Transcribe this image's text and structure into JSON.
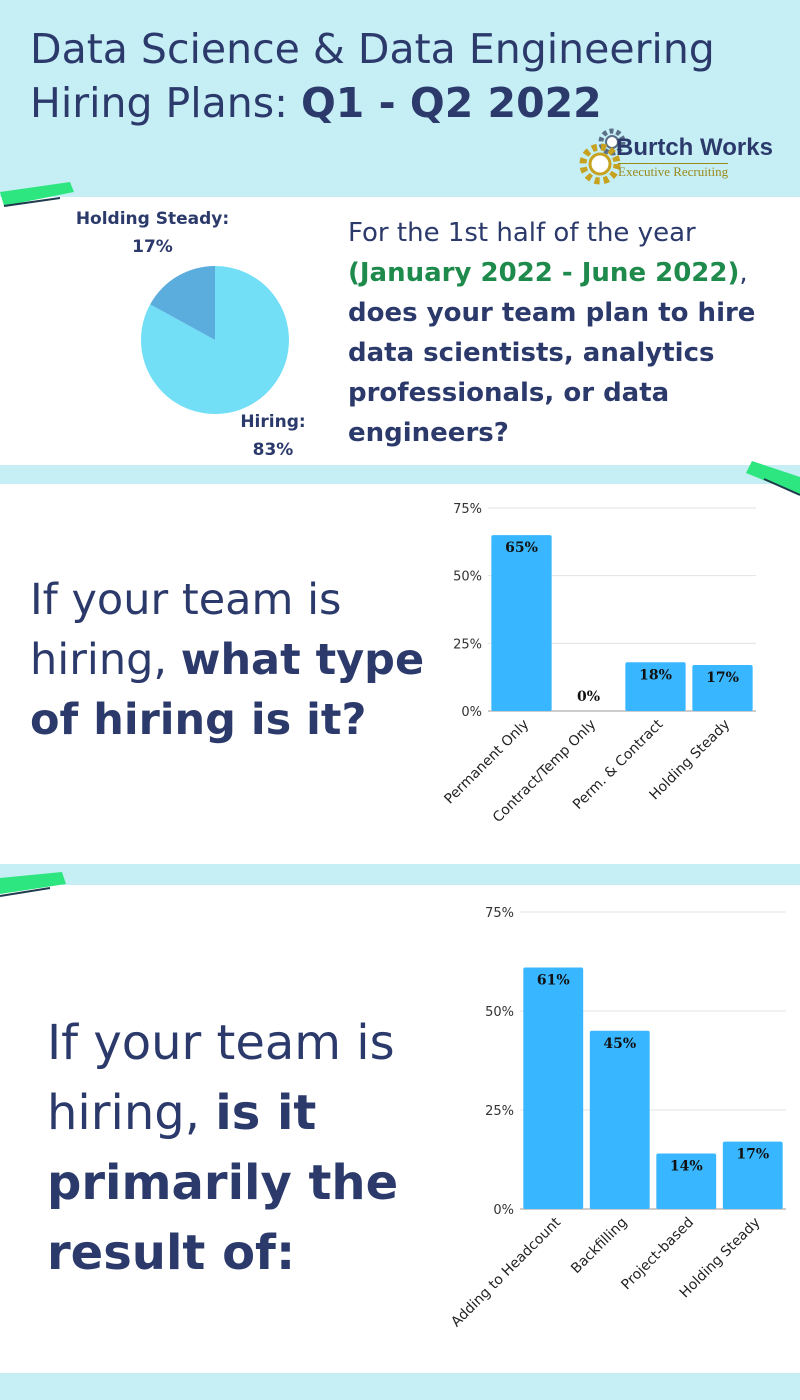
{
  "header": {
    "title_part1": "Data Science & Data Engineering",
    "title_part2": "Hiring Plans: ",
    "title_bold": "Q1 - Q2 2022"
  },
  "logo": {
    "name": "Burtch Works",
    "tagline": "Executive Recruiting"
  },
  "colors": {
    "title": "#2b3a6b",
    "bar": "#38b6ff",
    "pie_hiring": "#72dff6",
    "pie_holding": "#5badde",
    "accent_green": "#2ee67f",
    "background": "#c6eef5"
  },
  "section1": {
    "question_part1": "For the 1st half of the year",
    "question_green": "(January 2022 - June 2022)",
    "question_comma": ",",
    "question_bold": "does your team plan to hire data scientists, analytics professionals, or data engineers?"
  },
  "section2": {
    "question_plain": "If your team is hiring, ",
    "question_bold": "what type of hiring is it?"
  },
  "section3": {
    "question_plain": "If your team is hiring, ",
    "question_bold": "is it primarily the result of:"
  },
  "chart_data": [
    {
      "type": "pie",
      "categories": [
        "Hiring:",
        "Holding Steady:"
      ],
      "values": [
        83,
        17
      ],
      "labels": [
        "83%",
        "17%"
      ]
    },
    {
      "type": "bar",
      "categories": [
        "Permanent Only",
        "Contract/Temp Only",
        "Perm. & Contract",
        "Holding Steady"
      ],
      "values": [
        65,
        0,
        18,
        17
      ],
      "data_labels": [
        "65%",
        "0%",
        "18%",
        "17%"
      ],
      "yticks": [
        "0%",
        "25%",
        "50%",
        "75%"
      ],
      "ylim": [
        0,
        75
      ],
      "grid": true
    },
    {
      "type": "bar",
      "categories": [
        "Adding to Headcount",
        "Backfilling",
        "Project-based",
        "Holding Steady"
      ],
      "values": [
        61,
        45,
        14,
        17
      ],
      "data_labels": [
        "61%",
        "45%",
        "14%",
        "17%"
      ],
      "yticks": [
        "0%",
        "25%",
        "50%",
        "75%"
      ],
      "ylim": [
        0,
        75
      ],
      "grid": true
    }
  ]
}
